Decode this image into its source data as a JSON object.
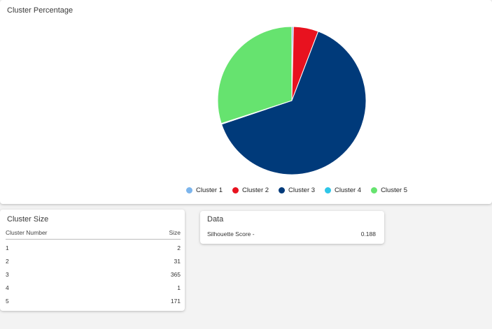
{
  "pie_card": {
    "title": "Cluster Percentage"
  },
  "chart_data": {
    "type": "pie",
    "title": "Cluster Percentage",
    "categories": [
      "Cluster 1",
      "Cluster 2",
      "Cluster 3",
      "Cluster 4",
      "Cluster 5"
    ],
    "values": [
      2,
      31,
      365,
      1,
      171
    ],
    "colors": [
      "#7cb5ec",
      "#e8121f",
      "#003a7a",
      "#2ec6e8",
      "#66e36f"
    ],
    "legend_position": "bottom"
  },
  "legend": [
    {
      "label": "Cluster 1",
      "color": "#7cb5ec"
    },
    {
      "label": "Cluster 2",
      "color": "#e8121f"
    },
    {
      "label": "Cluster 3",
      "color": "#003a7a"
    },
    {
      "label": "Cluster 4",
      "color": "#2ec6e8"
    },
    {
      "label": "Cluster 5",
      "color": "#66e36f"
    }
  ],
  "size_card": {
    "title": "Cluster Size",
    "col_number": "Cluster Number",
    "col_size": "Size",
    "rows": [
      {
        "number": "1",
        "size": "2"
      },
      {
        "number": "2",
        "size": "31"
      },
      {
        "number": "3",
        "size": "365"
      },
      {
        "number": "4",
        "size": "1"
      },
      {
        "number": "5",
        "size": "171"
      }
    ]
  },
  "data_card": {
    "title": "Data",
    "metric_label": "Silhouette Score -",
    "metric_value": "0.188"
  }
}
